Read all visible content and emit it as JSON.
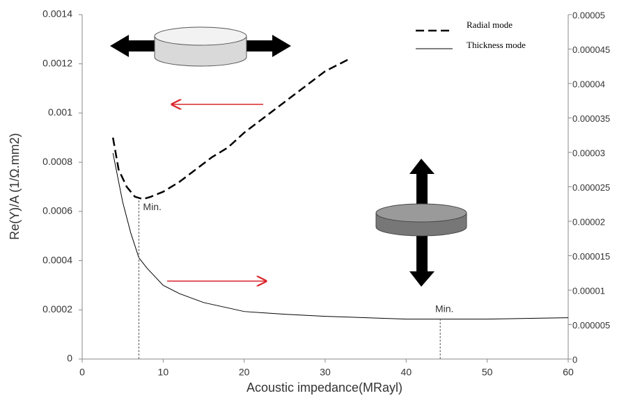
{
  "chart_data": {
    "type": "line",
    "xlabel": "Acoustic impedance(MRayl)",
    "ylabel": "Re(Y)/A (1/Ω.mm2)",
    "xlim": [
      0,
      60
    ],
    "xticks": [
      0,
      10,
      20,
      30,
      40,
      50,
      60
    ],
    "ylim": [
      0,
      0.0014
    ],
    "yticks": [
      0,
      0.0002,
      0.0004,
      0.0006,
      0.0008,
      0.001,
      0.0012,
      0.0014
    ],
    "y2lim": [
      0,
      5e-05
    ],
    "y2ticks": [
      0,
      5e-06,
      1e-05,
      1.5e-05,
      2e-05,
      2.5e-05,
      3e-05,
      3.5e-05,
      4e-05,
      4.5e-05,
      5e-05
    ],
    "series": [
      {
        "name": "Radial mode",
        "color": "#000000",
        "dash": "dashed",
        "axis": "y",
        "x": [
          3.8,
          4.5,
          5.5,
          6.5,
          7.5,
          8.5,
          10,
          12,
          14,
          16,
          18,
          20,
          22,
          24,
          26,
          28,
          30,
          33
        ],
        "values": [
          0.0009,
          0.00077,
          0.0007,
          0.00066,
          0.00065,
          0.00066,
          0.00068,
          0.00072,
          0.00077,
          0.00082,
          0.00086,
          0.00092,
          0.00097,
          0.00102,
          0.00107,
          0.00112,
          0.00117,
          0.00122
        ]
      },
      {
        "name": "Thickness mode",
        "color": "#000000",
        "dash": "solid",
        "axis": "y2",
        "x": [
          3.8,
          5,
          6,
          7,
          8,
          10,
          12,
          15,
          20,
          25,
          30,
          40,
          44,
          50,
          60
        ],
        "values": [
          2.99e-05,
          2.28e-05,
          1.83e-05,
          1.47e-05,
          1.32e-05,
          1.07e-05,
          9.5e-06,
          8.2e-06,
          6.9e-06,
          6.5e-06,
          6.2e-06,
          5.8e-06,
          5.8e-06,
          5.8e-06,
          6e-06
        ]
      }
    ],
    "annotations": [
      {
        "text": "Min.",
        "x": 7,
        "y": 0.00065,
        "axis": "y"
      },
      {
        "text": "Min.",
        "x": 44.2,
        "y": 5.8e-06,
        "axis": "y2"
      }
    ]
  }
}
